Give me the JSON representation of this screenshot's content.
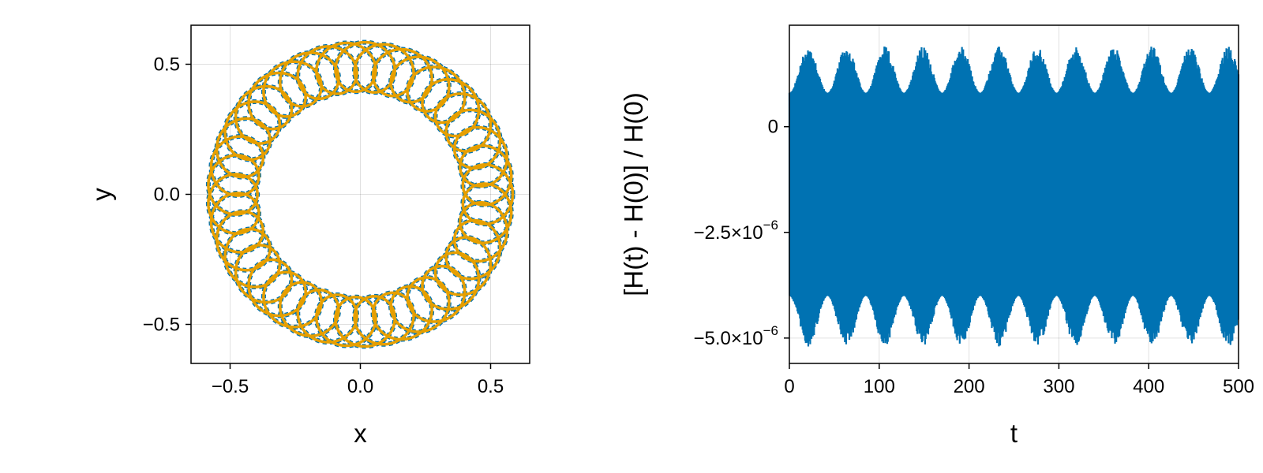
{
  "chart_data": [
    {
      "type": "line",
      "xlabel": "x",
      "ylabel": "y",
      "xlim": [
        -0.65,
        0.65
      ],
      "ylim": [
        -0.65,
        0.65
      ],
      "xticks": [
        -0.5,
        0.0,
        0.5
      ],
      "yticks": [
        -0.5,
        0.0,
        0.5
      ],
      "xtick_labels": [
        "−0.5",
        "0.0",
        "0.5"
      ],
      "ytick_labels": [
        "−0.5",
        "0.0",
        "0.5"
      ],
      "grid": true,
      "series": [
        {
          "color": "#0072b2",
          "style": "dashed-markers",
          "curve": "epicyclic orbit",
          "center_radius": 0.49,
          "loop_radius": 0.095,
          "loops": 42
        },
        {
          "color": "#e69f00",
          "style": "solid",
          "curve": "epicyclic orbit",
          "center_radius": 0.49,
          "loop_radius": 0.095,
          "loops": 42
        }
      ]
    },
    {
      "type": "line",
      "xlabel": "t",
      "ylabel": "[H(t) - H(0)] / H(0)",
      "xlim": [
        0,
        500
      ],
      "ylim": [
        -5.6e-06,
        2.4e-06
      ],
      "xticks": [
        0,
        100,
        200,
        300,
        400,
        500
      ],
      "xtick_labels": [
        "0",
        "100",
        "200",
        "300",
        "400",
        "500"
      ],
      "yticks": [
        0,
        -2.5e-06,
        -5e-06
      ],
      "ytick_labels": [
        {
          "mantissa": "0",
          "exponent": ""
        },
        {
          "mantissa": "−2.5×10",
          "exponent": "−6"
        },
        {
          "mantissa": "−5.0×10",
          "exponent": "−6"
        }
      ],
      "grid": true,
      "series": [
        {
          "color": "#0072b2",
          "oscillation": {
            "mean": -1.8e-06,
            "beat_period": 42.5,
            "upper_min": 8e-07,
            "upper_max": 1.9e-06,
            "lower_min": -4e-06,
            "lower_max": -5.2e-06
          }
        }
      ]
    }
  ]
}
